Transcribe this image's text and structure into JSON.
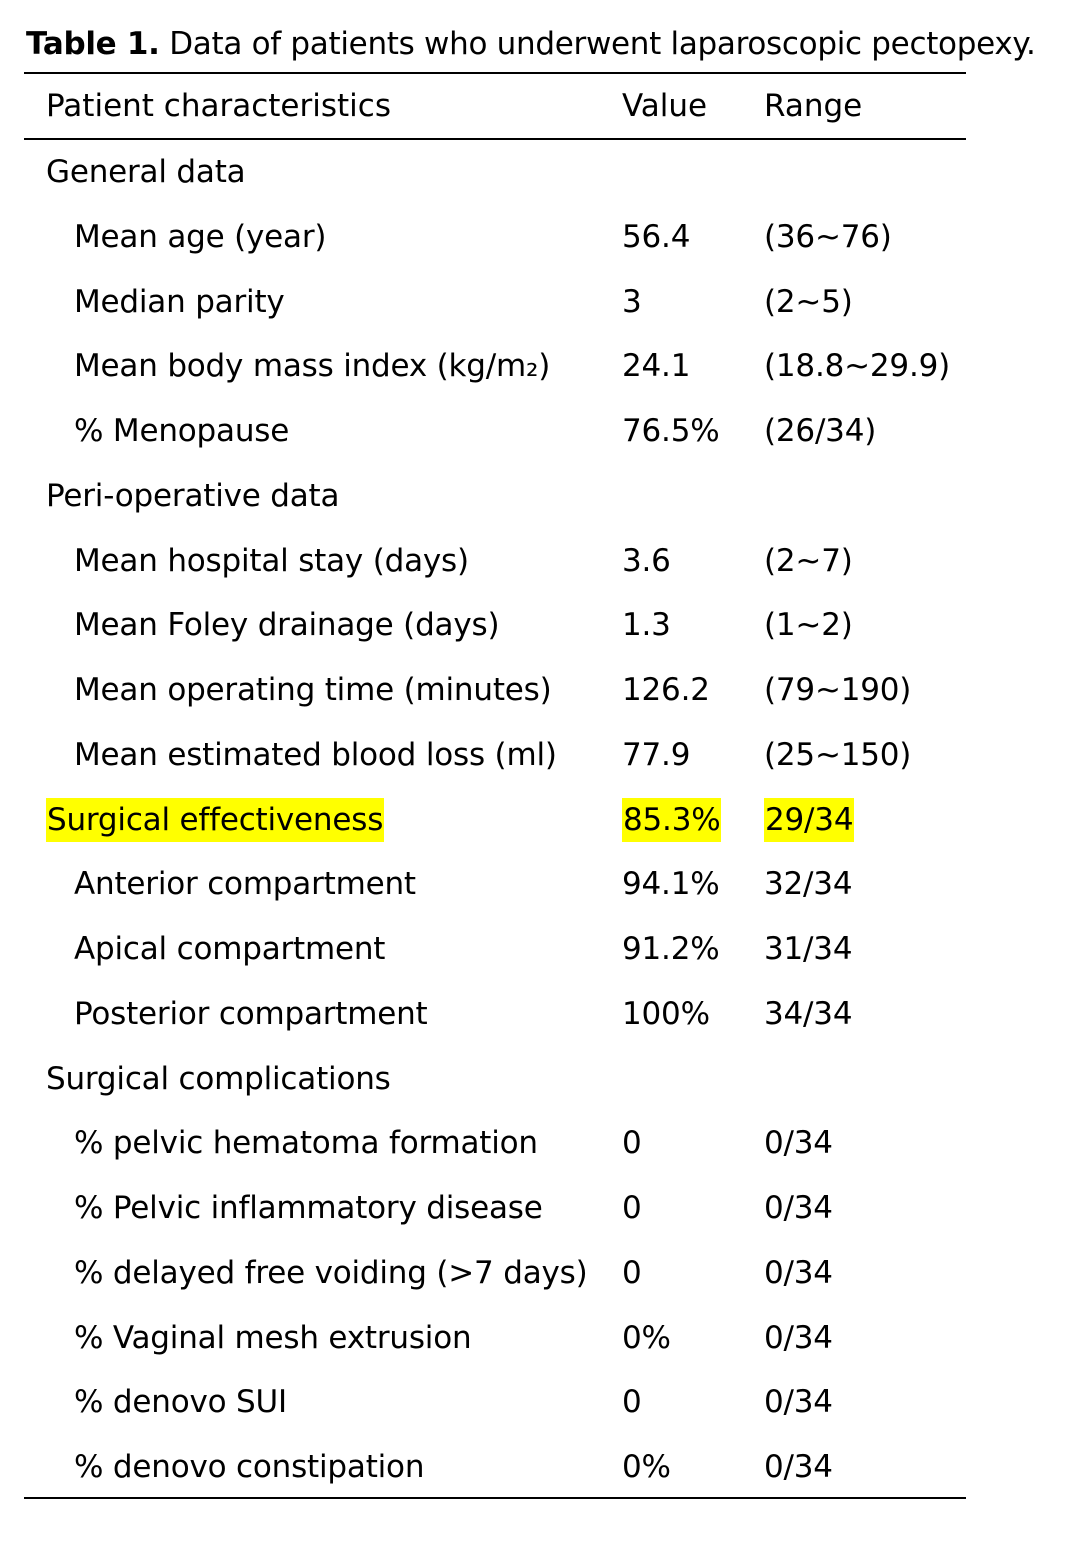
{
  "caption": {
    "label": "Table 1.",
    "text": "Data of patients who underwent laparoscopic pectopexy."
  },
  "header": {
    "characteristics": "Patient characteristics",
    "value": "Value",
    "range": "Range"
  },
  "rows": [
    {
      "label": "General data",
      "value": "",
      "range": "",
      "type": "section"
    },
    {
      "label": "Mean age (year)",
      "value": "56.4",
      "range": "(36~76)",
      "type": "sub"
    },
    {
      "label": "Median parity",
      "value": "3",
      "range": "(2~5)",
      "type": "sub"
    },
    {
      "label": "Mean body mass index (kg/m₂)",
      "value": "24.1",
      "range": "(18.8~29.9)",
      "type": "sub"
    },
    {
      "label": "% Menopause",
      "value": "76.5%",
      "range": "(26/34)",
      "type": "sub"
    },
    {
      "label": "Peri-operative data",
      "value": "",
      "range": "",
      "type": "section"
    },
    {
      "label": "Mean hospital stay (days)",
      "value": "3.6",
      "range": "(2~7)",
      "type": "sub"
    },
    {
      "label": "Mean Foley drainage (days)",
      "value": "1.3",
      "range": "(1~2)",
      "type": "sub"
    },
    {
      "label": "Mean operating time (minutes)",
      "value": "126.2",
      "range": "(79~190)",
      "type": "sub"
    },
    {
      "label": "Mean estimated blood loss (ml)",
      "value": "77.9",
      "range": "(25~150)",
      "type": "sub"
    },
    {
      "label": "Surgical effectiveness",
      "value": "85.3%",
      "range": "29/34",
      "type": "section",
      "highlight": true
    },
    {
      "label": "Anterior compartment",
      "value": "94.1%",
      "range": "32/34",
      "type": "sub"
    },
    {
      "label": "Apical compartment",
      "value": "91.2%",
      "range": "31/34",
      "type": "sub"
    },
    {
      "label": "Posterior compartment",
      "value": "100%",
      "range": "34/34",
      "type": "sub"
    },
    {
      "label": "Surgical complications",
      "value": "",
      "range": "",
      "type": "section"
    },
    {
      "label": "% pelvic hematoma formation",
      "value": "0",
      "range": "0/34",
      "type": "sub"
    },
    {
      "label": "% Pelvic inflammatory disease",
      "value": "0",
      "range": "0/34",
      "type": "sub"
    },
    {
      "label": "% delayed free voiding (>7 days)",
      "value": "0",
      "range": "0/34",
      "type": "sub"
    },
    {
      "label": "% Vaginal mesh extrusion",
      "value": "0%",
      "range": "0/34",
      "type": "sub"
    },
    {
      "label": "% denovo SUI",
      "value": "0",
      "range": "0/34",
      "type": "sub"
    },
    {
      "label": "% denovo constipation",
      "value": "0%",
      "range": "0/34",
      "type": "sub"
    }
  ],
  "colors": {
    "highlight": "#ffff00",
    "text": "#000000",
    "rule": "#000000"
  }
}
